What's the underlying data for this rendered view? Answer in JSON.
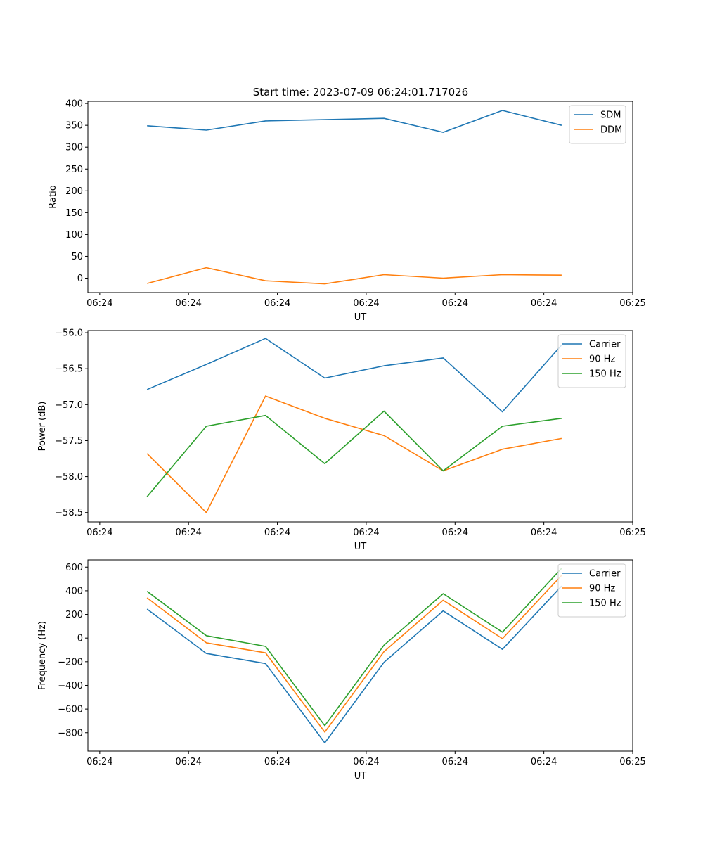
{
  "figure_title": "Start time: 2023-07-09 06:24:01.717026",
  "colors": {
    "blue": "#1f77b4",
    "orange": "#ff7f0e",
    "green": "#2ca02c"
  },
  "chart_data": [
    {
      "type": "line",
      "title": "Start time: 2023-07-09 06:24:01.717026",
      "xlabel": "UT",
      "ylabel": "Ratio",
      "x": [
        1,
        2,
        3,
        4,
        5,
        6,
        7,
        8
      ],
      "xlim": [
        0,
        9.2
      ],
      "xticks": [
        0.2,
        1.7,
        3.2,
        4.7,
        6.2,
        7.7,
        9.2
      ],
      "xtick_labels": [
        "06:24",
        "06:24",
        "06:24",
        "06:24",
        "06:24",
        "06:24",
        "06:25"
      ],
      "ylim": [
        -33,
        405
      ],
      "yticks": [
        0,
        50,
        100,
        150,
        200,
        250,
        300,
        350,
        400
      ],
      "ytick_labels": [
        "0",
        "50",
        "100",
        "150",
        "200",
        "250",
        "300",
        "350",
        "400"
      ],
      "legend_position": "top-right",
      "series": [
        {
          "name": "SDM",
          "color": "#1f77b4",
          "values": [
            349,
            339,
            360,
            363,
            366,
            334,
            384,
            350
          ]
        },
        {
          "name": "DDM",
          "color": "#ff7f0e",
          "values": [
            -12,
            24,
            -6,
            -13,
            8,
            0,
            8,
            7
          ]
        }
      ]
    },
    {
      "type": "line",
      "title": "",
      "xlabel": "UT",
      "ylabel": "Power (dB)",
      "x": [
        1,
        2,
        3,
        4,
        5,
        6,
        7,
        8
      ],
      "xlim": [
        0,
        9.2
      ],
      "xticks": [
        0.2,
        1.7,
        3.2,
        4.7,
        6.2,
        7.7,
        9.2
      ],
      "xtick_labels": [
        "06:24",
        "06:24",
        "06:24",
        "06:24",
        "06:24",
        "06:24",
        "06:25"
      ],
      "ylim": [
        -58.63,
        -55.97
      ],
      "yticks": [
        -58.5,
        -58.0,
        -57.5,
        -57.0,
        -56.5,
        -56.0
      ],
      "ytick_labels": [
        "−58.5",
        "−58.0",
        "−57.5",
        "−57.0",
        "−56.5",
        "−56.0"
      ],
      "legend_position": "top-right",
      "series": [
        {
          "name": "Carrier",
          "color": "#1f77b4",
          "values": [
            -56.79,
            -56.44,
            -56.08,
            -56.63,
            -56.46,
            -56.35,
            -57.1,
            -56.17
          ]
        },
        {
          "name": "90 Hz",
          "color": "#ff7f0e",
          "values": [
            -57.68,
            -58.5,
            -56.88,
            -57.19,
            -57.43,
            -57.92,
            -57.62,
            -57.47
          ]
        },
        {
          "name": "150 Hz",
          "color": "#2ca02c",
          "values": [
            -58.28,
            -57.3,
            -57.15,
            -57.82,
            -57.09,
            -57.92,
            -57.3,
            -57.19
          ]
        }
      ]
    },
    {
      "type": "line",
      "title": "",
      "xlabel": "UT",
      "ylabel": "Frequency (Hz)",
      "x": [
        1,
        2,
        3,
        4,
        5,
        6,
        7,
        8
      ],
      "xlim": [
        0,
        9.2
      ],
      "xticks": [
        0.2,
        1.7,
        3.2,
        4.7,
        6.2,
        7.7,
        9.2
      ],
      "xtick_labels": [
        "06:24",
        "06:24",
        "06:24",
        "06:24",
        "06:24",
        "06:24",
        "06:25"
      ],
      "ylim": [
        -956,
        661
      ],
      "yticks": [
        -800,
        -600,
        -400,
        -200,
        0,
        200,
        400,
        600
      ],
      "ytick_labels": [
        "−800",
        "−600",
        "−400",
        "−200",
        "0",
        "200",
        "400",
        "600"
      ],
      "legend_position": "top-right",
      "series": [
        {
          "name": "Carrier",
          "color": "#1f77b4",
          "values": [
            245,
            -130,
            -215,
            -885,
            -205,
            230,
            -95,
            440
          ]
        },
        {
          "name": "90 Hz",
          "color": "#ff7f0e",
          "values": [
            340,
            -40,
            -125,
            -795,
            -115,
            320,
            -5,
            530
          ]
        },
        {
          "name": "150 Hz",
          "color": "#2ca02c",
          "values": [
            395,
            20,
            -70,
            -740,
            -60,
            375,
            50,
            590
          ]
        }
      ]
    }
  ]
}
